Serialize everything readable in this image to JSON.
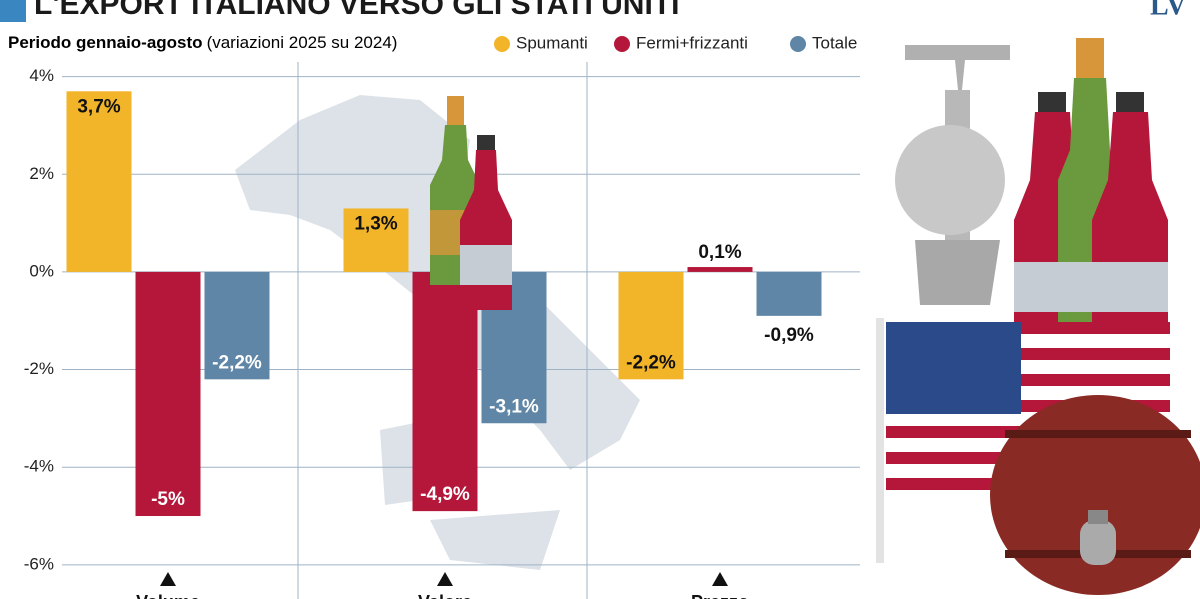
{
  "chart_data": {
    "type": "bar",
    "title": "L'EXPORT ITALIANO VERSO GLI STATI UNITI",
    "logo": "LV",
    "subtitle": "Periodo gennaio-agosto",
    "subtitle_note": "(variazioni 2025 su 2024)",
    "categories": [
      "Volume",
      "Valore",
      "Prezzo"
    ],
    "series": [
      {
        "name": "Spumanti",
        "color": "#f2b52a",
        "values": [
          3.7,
          1.3,
          -2.2
        ],
        "value_labels": [
          "3,7%",
          "1,3%",
          "-2,2%"
        ]
      },
      {
        "name": "Fermi+frizzanti",
        "color": "#b5173a",
        "values": [
          -5,
          -4.9,
          0.1
        ],
        "value_labels": [
          "-5%",
          "-4,9%",
          "0,1%"
        ]
      },
      {
        "name": "Totale",
        "color": "#5f86a6",
        "values": [
          -2.2,
          -3.1,
          -0.9
        ],
        "value_labels": [
          "-2,2%",
          "-3,1%",
          "-0,9%"
        ]
      }
    ],
    "ylim": [
      -6.7,
      4.3
    ],
    "yticks": [
      {
        "value": -6,
        "label": "-6%"
      },
      {
        "value": -4,
        "label": "-4%"
      },
      {
        "value": -2,
        "label": "-2%"
      },
      {
        "value": 0,
        "label": "0%"
      },
      {
        "value": 2,
        "label": "2%"
      },
      {
        "value": 4,
        "label": "4%"
      }
    ],
    "grid": true
  }
}
